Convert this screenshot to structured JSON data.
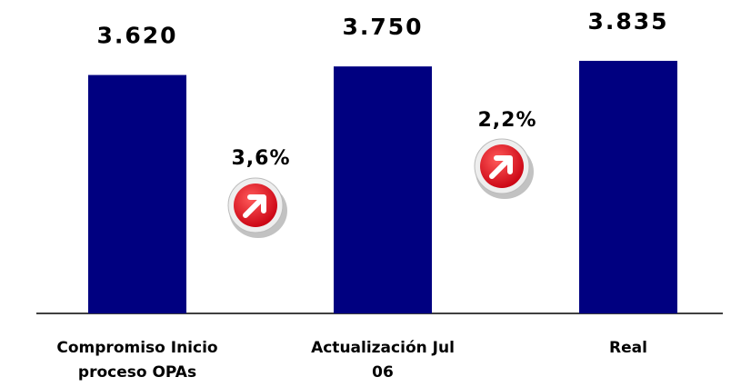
{
  "chart_data": {
    "type": "bar",
    "categories": [
      [
        "Compromiso Inicio",
        "proceso OPAs"
      ],
      [
        "Actualización Jul",
        "06"
      ],
      [
        "Real"
      ]
    ],
    "values": [
      3620,
      3750,
      3835
    ],
    "value_labels": [
      "3.620",
      "3.750",
      "3.835"
    ],
    "color": "#000080",
    "ylim": [
      0,
      4000
    ],
    "annotations": [
      {
        "text": "3,6%"
      },
      {
        "text": "2,2%"
      }
    ]
  }
}
